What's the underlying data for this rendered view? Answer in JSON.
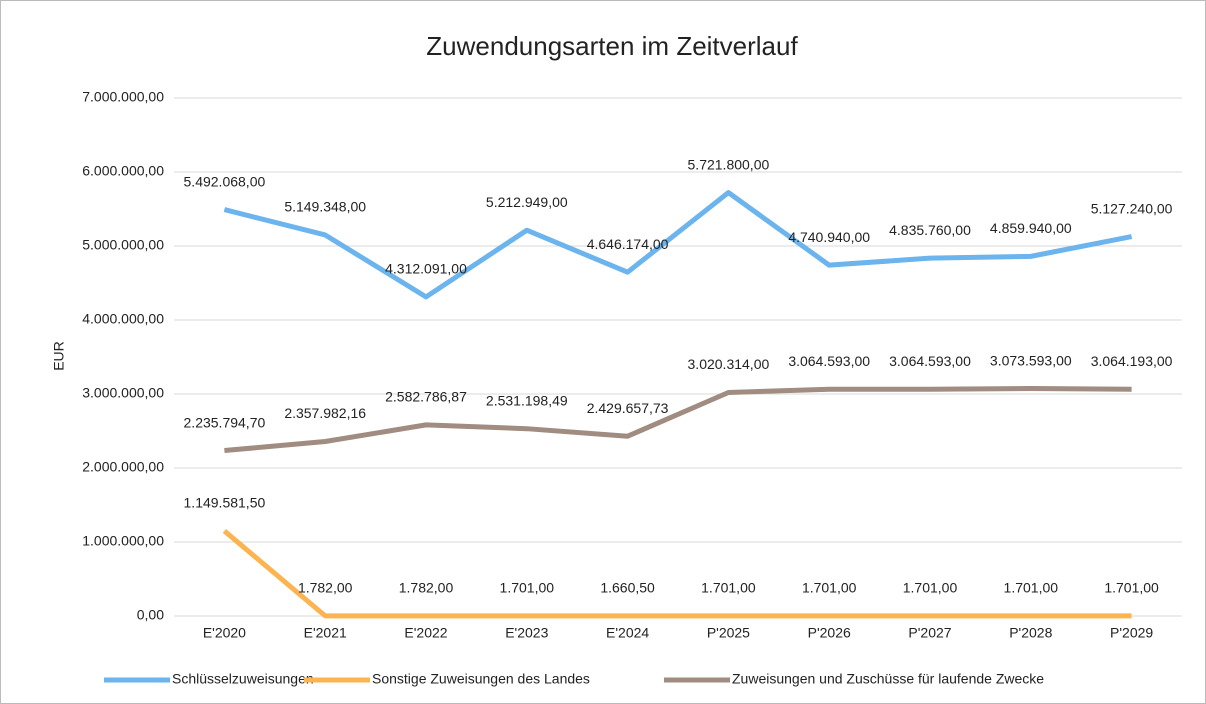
{
  "chart_data": {
    "type": "line",
    "title": "Zuwendungsarten im Zeitverlauf",
    "y_label": "EUR",
    "categories": [
      "E'2020",
      "E'2021",
      "E'2022",
      "E'2023",
      "E'2024",
      "P'2025",
      "P'2026",
      "P'2027",
      "P'2028",
      "P'2029"
    ],
    "series": [
      {
        "name": "Schlüsselzuweisungen",
        "color": "#6cb4ee",
        "values": [
          5492068,
          5149348,
          4312091,
          5212949,
          4646174,
          5721800,
          4740940,
          4835760,
          4859940,
          5127240
        ],
        "value_labels": [
          "5.492.068,00",
          "5.149.348,00",
          "4.312.091,00",
          "5.212.949,00",
          "4.646.174,00",
          "5.721.800,00",
          "4.740.940,00",
          "4.835.760,00",
          "4.859.940,00",
          "5.127.240,00"
        ]
      },
      {
        "name": "Sonstige Zuweisungen des Landes",
        "color": "#fbb450",
        "values": [
          1149581.5,
          1782,
          1782,
          1701,
          1660.5,
          1701,
          1701,
          1701,
          1701,
          1701
        ],
        "value_labels": [
          "1.149.581,50",
          "1.782,00",
          "1.782,00",
          "1.701,00",
          "1.660,50",
          "1.701,00",
          "1.701,00",
          "1.701,00",
          "1.701,00",
          "1.701,00"
        ]
      },
      {
        "name": "Zuweisungen und Zuschüsse für laufende Zwecke",
        "color": "#a08c80",
        "values": [
          2235794.7,
          2357982.16,
          2582786.87,
          2531198.49,
          2429657.73,
          3020314,
          3064593,
          3064593,
          3073593,
          3064193
        ],
        "value_labels": [
          "2.235.794,70",
          "2.357.982,16",
          "2.582.786,87",
          "2.531.198,49",
          "2.429.657,73",
          "3.020.314,00",
          "3.064.593,00",
          "3.064.593,00",
          "3.073.593,00",
          "3.064.193,00"
        ]
      }
    ],
    "ylim": [
      0,
      7000000
    ],
    "yticks": [
      {
        "value": 0,
        "label": "0,00"
      },
      {
        "value": 1000000,
        "label": "1.000.000,00"
      },
      {
        "value": 2000000,
        "label": "2.000.000,00"
      },
      {
        "value": 3000000,
        "label": "3.000.000,00"
      },
      {
        "value": 4000000,
        "label": "4.000.000,00"
      },
      {
        "value": 5000000,
        "label": "5.000.000,00"
      },
      {
        "value": 6000000,
        "label": "6.000.000,00"
      },
      {
        "value": 7000000,
        "label": "7.000.000,00"
      }
    ],
    "grid": true,
    "legend": "bottom"
  }
}
